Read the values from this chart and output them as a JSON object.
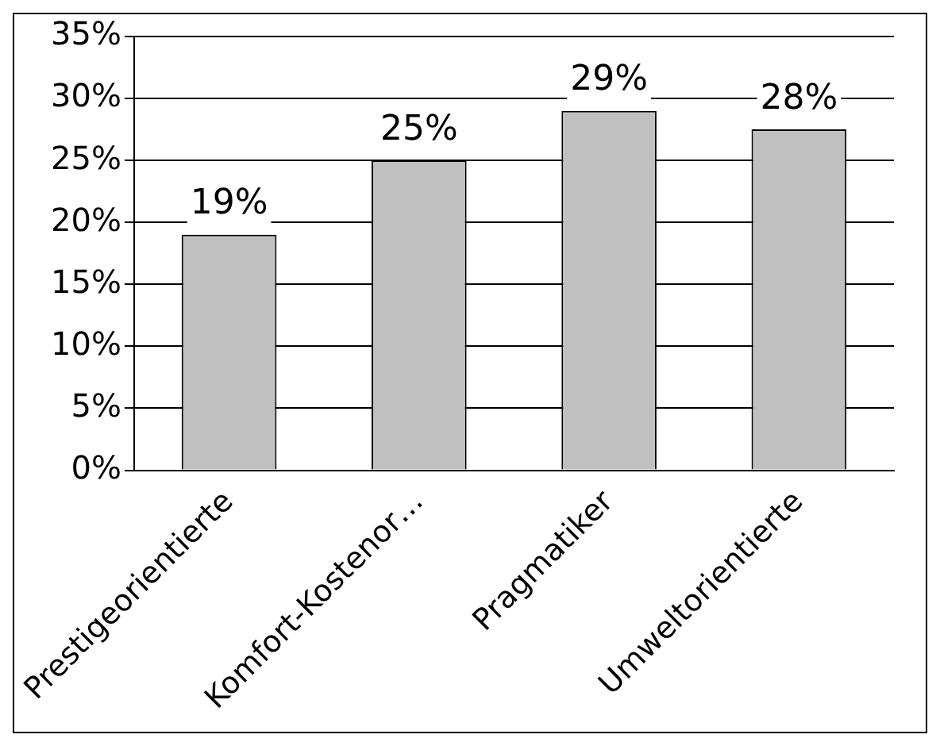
{
  "chart_data": {
    "type": "bar",
    "categories": [
      "Prestigeorientierte",
      "Komfort-Kostenor…",
      "Pragmatiker",
      "Umweltorientierte"
    ],
    "values": [
      19,
      25,
      29,
      27.5
    ],
    "value_labels": [
      "19%",
      "25%",
      "29%",
      "28%"
    ],
    "color": "#c0c0c0",
    "ylim": [
      0,
      35
    ],
    "yticks": [
      {
        "value": 0,
        "label": "0%"
      },
      {
        "value": 5,
        "label": "5%"
      },
      {
        "value": 10,
        "label": "10%"
      },
      {
        "value": 15,
        "label": "15%"
      },
      {
        "value": 20,
        "label": "20%"
      },
      {
        "value": 25,
        "label": "25%"
      },
      {
        "value": 30,
        "label": "30%"
      },
      {
        "value": 35,
        "label": "35%"
      }
    ],
    "grid": "y",
    "legend": false
  }
}
